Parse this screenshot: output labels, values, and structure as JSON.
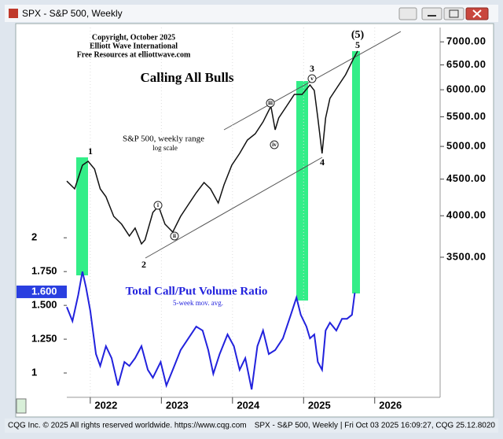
{
  "window": {
    "title": "SPX - S&P 500, Weekly"
  },
  "footer": {
    "left": "CQG Inc. © 2025 All rights reserved worldwide. https://www.cqg.com",
    "right": "SPX - S&P 500, Weekly | Fri Oct 03 2025 16:09:27, CQG 25.12.8020"
  },
  "chart_data": {
    "type": "line",
    "title": "Calling All Bulls",
    "credits": [
      "Copyright, October 2025",
      "Elliott Wave International",
      "Free Resources at elliottwave.com"
    ],
    "log_label": "log scale",
    "ylog": true,
    "xlim": [
      2021.67,
      2026.92
    ],
    "xticks": [
      2022,
      2023,
      2024,
      2025,
      2026
    ],
    "ylim": [
      2230,
      7330
    ],
    "yticks": [
      {
        "value": 3500,
        "label": "3500.00"
      },
      {
        "value": 4000,
        "label": "4000.00"
      },
      {
        "value": 4500,
        "label": "4500.00"
      },
      {
        "value": 5000,
        "label": "5000.00"
      },
      {
        "value": 5500,
        "label": "5500.00"
      },
      {
        "value": 6000,
        "label": "6000.00"
      },
      {
        "value": 6500,
        "label": "6500.00"
      },
      {
        "value": 7000,
        "label": "7000.00"
      }
    ],
    "y2lim": [
      0.82,
      3.555
    ],
    "y2ticks": [
      1,
      {
        "value": 1.25,
        "label": "1.250"
      },
      {
        "value": 1.5,
        "label": "1.500"
      },
      {
        "value": 1.75,
        "label": "1.750"
      },
      2
    ],
    "y2_current": {
      "value": 1.6,
      "label": "1.600"
    },
    "wave_labels": [
      "1",
      "2",
      "3",
      "4",
      "5",
      "(5)"
    ],
    "subwave_labels": [
      "i",
      "ii",
      "iii",
      "iv",
      "v"
    ],
    "series": [
      {
        "name": "S&P 500, weekly range",
        "color": "#111111",
        "axis": "y",
        "x": [
          2021.67,
          2021.78,
          2021.89,
          2021.97,
          2022.06,
          2022.14,
          2022.22,
          2022.33,
          2022.44,
          2022.55,
          2022.63,
          2022.72,
          2022.77,
          2022.88,
          2022.96,
          2023.05,
          2023.16,
          2023.27,
          2023.38,
          2023.49,
          2023.6,
          2023.69,
          2023.8,
          2023.88,
          2023.99,
          2024.1,
          2024.21,
          2024.32,
          2024.43,
          2024.54,
          2024.6,
          2024.65,
          2024.76,
          2024.87,
          2024.98,
          2025.09,
          2025.15,
          2025.2,
          2025.26,
          2025.31,
          2025.37,
          2025.48,
          2025.59,
          2025.7,
          2025.76
        ],
        "values": [
          4472,
          4362,
          4706,
          4766,
          4648,
          4362,
          4253,
          3992,
          3893,
          3748,
          3844,
          3654,
          3700,
          4043,
          4126,
          3893,
          3795,
          3992,
          4147,
          4307,
          4451,
          4362,
          4168,
          4418,
          4706,
          4889,
          5103,
          5208,
          5411,
          5691,
          5274,
          5478,
          5691,
          5911,
          5911,
          6094,
          5986,
          5478,
          4889,
          5478,
          5836,
          6063,
          6297,
          6625,
          6795
        ]
      },
      {
        "name": "Total Call/Put Volume Ratio",
        "note": "5-week mov. avg.",
        "color": "#2222dd",
        "axis": "y2",
        "x": [
          2021.67,
          2021.75,
          2021.83,
          2021.89,
          2021.94,
          2022.0,
          2022.08,
          2022.14,
          2022.22,
          2022.3,
          2022.39,
          2022.48,
          2022.55,
          2022.63,
          2022.72,
          2022.81,
          2022.88,
          2022.99,
          2023.07,
          2023.16,
          2023.27,
          2023.38,
          2023.49,
          2023.58,
          2023.66,
          2023.73,
          2023.82,
          2023.93,
          2024.02,
          2024.1,
          2024.18,
          2024.27,
          2024.35,
          2024.43,
          2024.51,
          2024.6,
          2024.71,
          2024.82,
          2024.9,
          2024.96,
          2025.04,
          2025.09,
          2025.15,
          2025.2,
          2025.26,
          2025.31,
          2025.37,
          2025.46,
          2025.54,
          2025.61,
          2025.68,
          2025.72
        ],
        "values": [
          1.488,
          1.384,
          1.576,
          1.75,
          1.634,
          1.459,
          1.14,
          1.052,
          1.198,
          1.11,
          0.907,
          1.081,
          1.052,
          1.11,
          1.198,
          1.023,
          0.965,
          1.081,
          0.907,
          1.023,
          1.169,
          1.256,
          1.343,
          1.314,
          1.169,
          0.994,
          1.14,
          1.285,
          1.198,
          1.023,
          1.11,
          0.878,
          1.198,
          1.314,
          1.14,
          1.169,
          1.256,
          1.43,
          1.558,
          1.43,
          1.343,
          1.256,
          1.285,
          1.081,
          1.023,
          1.314,
          1.372,
          1.314,
          1.401,
          1.401,
          1.43,
          1.593
        ]
      }
    ]
  }
}
